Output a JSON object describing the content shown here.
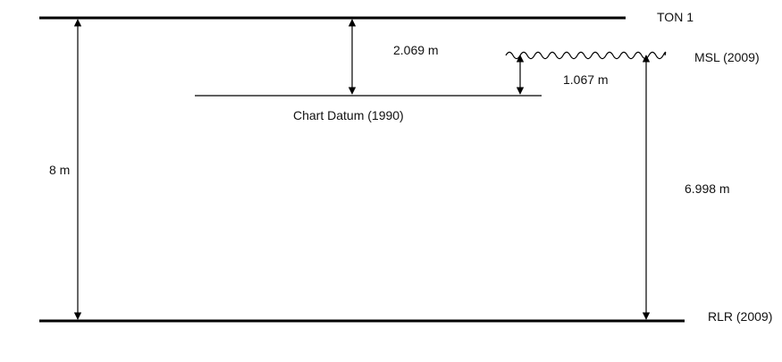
{
  "diagram": {
    "levels": {
      "ton1": "TON 1",
      "msl": "MSL (2009)",
      "chart_datum": "Chart Datum (1990)",
      "rlr": "RLR (2009)"
    },
    "measurements": {
      "ton1_to_rlr": "8 m",
      "ton1_to_chart_datum": "2.069 m",
      "msl_to_chart_datum": "1.067 m",
      "msl_to_rlr": "6.998 m"
    },
    "colors": {
      "line": "#000000",
      "text": "#111111"
    }
  }
}
